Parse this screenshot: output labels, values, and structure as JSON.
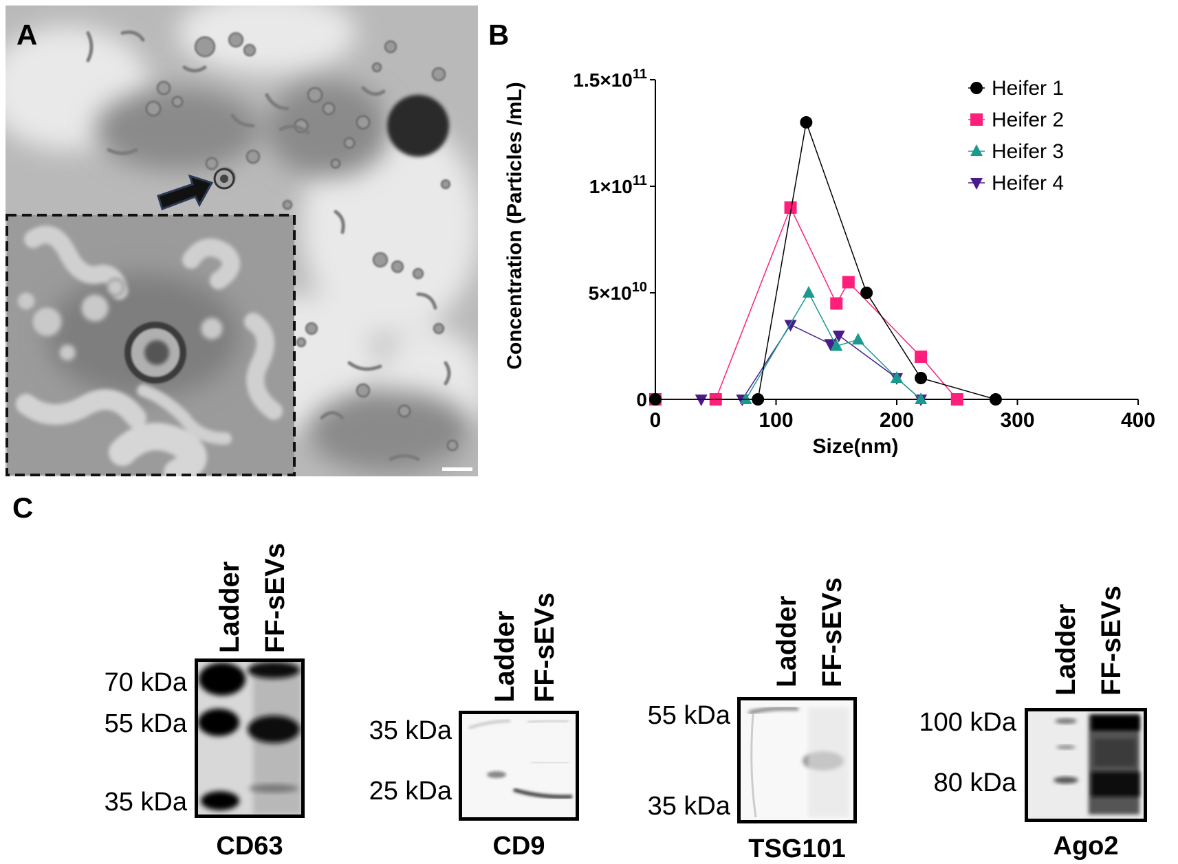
{
  "panels": {
    "a": "A",
    "b": "B",
    "c": "C"
  },
  "chart_data": {
    "type": "line",
    "xlabel": "Size(nm)",
    "ylabel": "Concentration (Particles /mL)",
    "xlim": [
      0,
      400
    ],
    "ylim": [
      0,
      150000000000
    ],
    "x_ticks": [
      {
        "value": 0,
        "label": "0"
      },
      {
        "value": 100,
        "label": "100"
      },
      {
        "value": 200,
        "label": "200"
      },
      {
        "value": 300,
        "label": "300"
      },
      {
        "value": 400,
        "label": "400"
      }
    ],
    "y_ticks": [
      {
        "value": 0,
        "label": "0"
      },
      {
        "value": 50000000000,
        "label": "5×10",
        "exp": "10"
      },
      {
        "value": 100000000000,
        "label": "1×10",
        "exp": "11"
      },
      {
        "value": 150000000000,
        "label": "1.5×10",
        "exp": "11"
      }
    ],
    "grid": false,
    "legend_position": "top-right",
    "series": [
      {
        "name": "Heifer 1",
        "color": "#000000",
        "marker": "circle",
        "points": [
          [
            0,
            0
          ],
          [
            85,
            0
          ],
          [
            125,
            130000000000
          ],
          [
            175,
            50000000000
          ],
          [
            220,
            10000000000
          ],
          [
            282,
            0
          ]
        ]
      },
      {
        "name": "Heifer 2",
        "color": "#ff1f7a",
        "marker": "square",
        "points": [
          [
            0,
            0
          ],
          [
            50,
            0
          ],
          [
            112,
            90000000000
          ],
          [
            150,
            45000000000
          ],
          [
            160,
            55000000000
          ],
          [
            220,
            20000000000
          ],
          [
            250,
            0
          ]
        ]
      },
      {
        "name": "Heifer 3",
        "color": "#1a9a8f",
        "marker": "triangle-up",
        "points": [
          [
            75,
            0
          ],
          [
            127,
            50000000000
          ],
          [
            150,
            25000000000
          ],
          [
            168,
            28000000000
          ],
          [
            200,
            10000000000
          ],
          [
            220,
            0
          ]
        ]
      },
      {
        "name": "Heifer 4",
        "color": "#4b1a8c",
        "marker": "triangle-down",
        "points": [
          [
            38,
            0
          ],
          [
            72,
            0
          ],
          [
            112,
            35000000000
          ],
          [
            145,
            26000000000
          ],
          [
            152,
            30000000000
          ],
          [
            200,
            10000000000
          ],
          [
            220,
            0
          ]
        ]
      }
    ]
  },
  "blots": [
    {
      "title": "CD63",
      "lanes": [
        "Ladder",
        "FF-sEVs"
      ],
      "markers": [
        "70 kDa",
        "55 kDa",
        "35 kDa"
      ]
    },
    {
      "title": "CD9",
      "lanes": [
        "Ladder",
        "FF-sEVs"
      ],
      "markers": [
        "35 kDa",
        "25 kDa"
      ]
    },
    {
      "title": "TSG101",
      "lanes": [
        "Ladder",
        "FF-sEVs"
      ],
      "markers": [
        "55 kDa",
        "35 kDa"
      ]
    },
    {
      "title": "Ago2",
      "lanes": [
        "Ladder",
        "FF-sEVs"
      ],
      "markers": [
        "100 kDa",
        "80 kDa"
      ]
    }
  ]
}
